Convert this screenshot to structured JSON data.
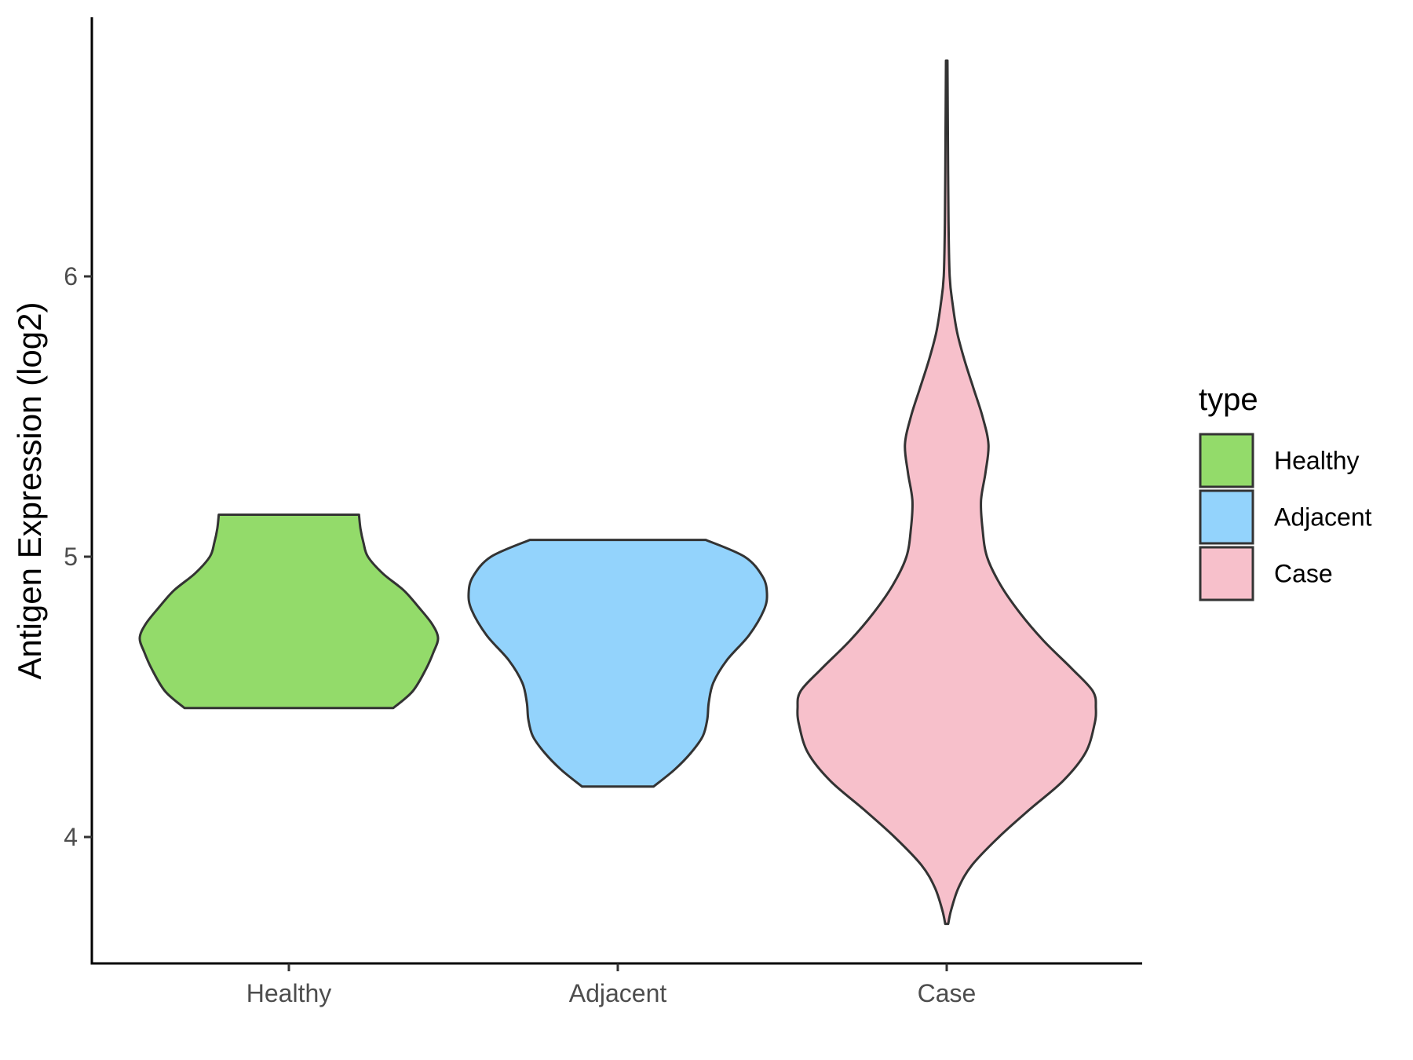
{
  "chart_data": {
    "type": "violin",
    "ylabel": "Antigen Expression (log2)",
    "xlabel": "",
    "categories": [
      "Healthy",
      "Adjacent",
      "Case"
    ],
    "y_ticks": [
      4,
      5,
      6
    ],
    "y_tick_labels": [
      "4",
      "5",
      "6"
    ],
    "ylim": [
      3.55,
      6.92
    ],
    "grid": false,
    "legend": {
      "title": "type",
      "placement": "right",
      "entries": [
        "Healthy",
        "Adjacent",
        "Case"
      ]
    },
    "colors": {
      "Healthy": "#93DB6A",
      "Adjacent": "#93D3FC",
      "Case": "#F7C0CB",
      "outline": "#333333"
    },
    "series": [
      {
        "name": "Healthy",
        "min": 4.46,
        "max": 5.15,
        "density_profile": [
          [
            4.46,
            0.7
          ],
          [
            4.52,
            0.83
          ],
          [
            4.6,
            0.92
          ],
          [
            4.66,
            0.97
          ],
          [
            4.71,
            1.0
          ],
          [
            4.76,
            0.96
          ],
          [
            4.82,
            0.87
          ],
          [
            4.88,
            0.77
          ],
          [
            4.94,
            0.63
          ],
          [
            5.0,
            0.53
          ],
          [
            5.05,
            0.5
          ],
          [
            5.1,
            0.48
          ],
          [
            5.15,
            0.47
          ]
        ]
      },
      {
        "name": "Adjacent",
        "min": 4.18,
        "max": 5.06,
        "density_profile": [
          [
            4.18,
            0.24
          ],
          [
            4.24,
            0.38
          ],
          [
            4.3,
            0.49
          ],
          [
            4.36,
            0.57
          ],
          [
            4.42,
            0.6
          ],
          [
            4.48,
            0.61
          ],
          [
            4.55,
            0.64
          ],
          [
            4.63,
            0.73
          ],
          [
            4.72,
            0.88
          ],
          [
            4.81,
            0.98
          ],
          [
            4.87,
            1.0
          ],
          [
            4.93,
            0.97
          ],
          [
            5.0,
            0.85
          ],
          [
            5.06,
            0.59
          ]
        ]
      },
      {
        "name": "Case",
        "min": 3.69,
        "max": 6.77,
        "density_profile": [
          [
            3.69,
            0.01
          ],
          [
            3.74,
            0.03
          ],
          [
            3.82,
            0.08
          ],
          [
            3.9,
            0.17
          ],
          [
            4.0,
            0.35
          ],
          [
            4.1,
            0.56
          ],
          [
            4.2,
            0.78
          ],
          [
            4.3,
            0.93
          ],
          [
            4.4,
            0.99
          ],
          [
            4.46,
            1.0
          ],
          [
            4.52,
            0.98
          ],
          [
            4.6,
            0.84
          ],
          [
            4.7,
            0.65
          ],
          [
            4.8,
            0.49
          ],
          [
            4.9,
            0.36
          ],
          [
            5.0,
            0.27
          ],
          [
            5.1,
            0.24
          ],
          [
            5.2,
            0.23
          ],
          [
            5.3,
            0.26
          ],
          [
            5.4,
            0.28
          ],
          [
            5.5,
            0.24
          ],
          [
            5.6,
            0.18
          ],
          [
            5.7,
            0.12
          ],
          [
            5.8,
            0.07
          ],
          [
            5.9,
            0.04
          ],
          [
            6.0,
            0.02
          ],
          [
            6.2,
            0.012
          ],
          [
            6.5,
            0.008
          ],
          [
            6.77,
            0.005
          ]
        ]
      }
    ]
  }
}
